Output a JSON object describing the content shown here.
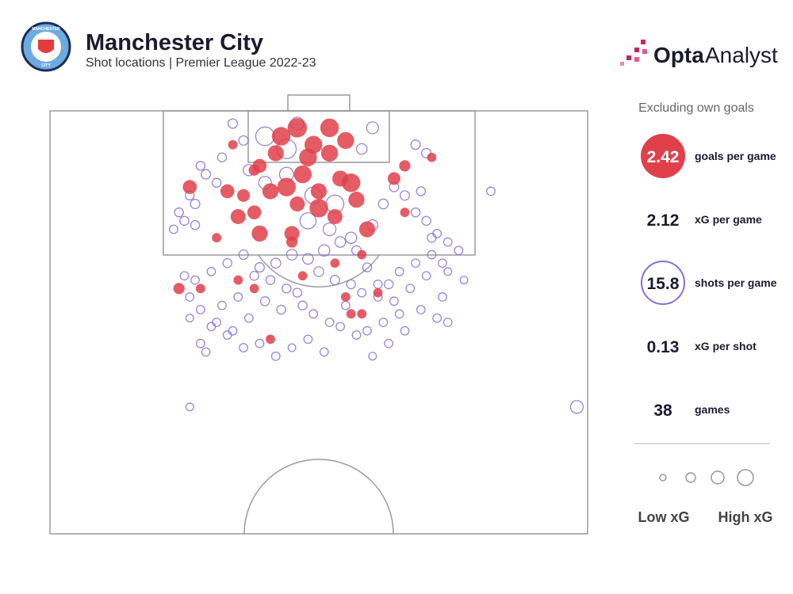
{
  "chart_data": {
    "type": "shotmap",
    "title": "Manchester City",
    "subtitle": "Shot locations | Premier League 2022-23",
    "crest_text": [
      "MANCHESTER",
      "CITY"
    ],
    "brand": [
      "Opta",
      "Analyst"
    ],
    "note": "Excluding own goals",
    "stats": [
      {
        "value": 2.42,
        "label": "goals per game"
      },
      {
        "value": 2.12,
        "label": "xG per game"
      },
      {
        "value": 15.8,
        "label": "shots per game"
      },
      {
        "value": 0.13,
        "label": "xG per shot"
      },
      {
        "value": 38,
        "label": "games"
      }
    ],
    "legend_labels": [
      "Low xG",
      "High xG"
    ],
    "xlim": [
      0,
      100
    ],
    "ylim": [
      0,
      100
    ],
    "goal_color": "#e0404a",
    "shot_color": "#8a6fd6",
    "shots": {
      "x": [
        34,
        46,
        36,
        60,
        58,
        68,
        70,
        32,
        28,
        29,
        31,
        26,
        27,
        25,
        24,
        23,
        37,
        40,
        44,
        48,
        52,
        56,
        60,
        62,
        64,
        66,
        68,
        70,
        72,
        74,
        76,
        73,
        71,
        69,
        65,
        63,
        61,
        59,
        57,
        54,
        51,
        48,
        45,
        42,
        39,
        36,
        33,
        30,
        27,
        25,
        26,
        28,
        31,
        34,
        37,
        40,
        43,
        46,
        49,
        52,
        55,
        58,
        61,
        64,
        67,
        70,
        73,
        74,
        72,
        69,
        66,
        63,
        60,
        57,
        54,
        51,
        48,
        45,
        42,
        39,
        36,
        33,
        30,
        28,
        26,
        29,
        32,
        35,
        38,
        41,
        44,
        47,
        50,
        53,
        56,
        59,
        62,
        65,
        68,
        71,
        74,
        77,
        53,
        49,
        44,
        40,
        27,
        82,
        98,
        26
      ],
      "y": [
        3,
        3,
        7,
        4,
        9,
        8,
        10,
        11,
        13,
        15,
        17,
        20,
        22,
        26,
        24,
        28,
        14,
        17,
        15,
        26,
        28,
        30,
        27,
        22,
        18,
        20,
        24,
        26,
        29,
        31,
        33,
        36,
        30,
        19,
        38,
        41,
        44,
        37,
        33,
        31,
        33,
        35,
        34,
        36,
        37,
        34,
        36,
        38,
        40,
        39,
        44,
        47,
        50,
        52,
        49,
        45,
        47,
        43,
        48,
        50,
        46,
        43,
        41,
        45,
        42,
        39,
        44,
        50,
        49,
        47,
        52,
        55,
        58,
        53,
        51,
        57,
        54,
        56,
        58,
        55,
        56,
        53,
        51,
        55,
        49,
        57,
        46,
        44,
        39,
        40,
        42,
        46,
        38,
        40,
        41,
        52,
        50,
        48,
        36,
        34,
        38,
        40,
        22,
        20,
        9,
        6,
        27,
        19,
        70,
        70
      ],
      "xg": [
        0.05,
        0.15,
        0.05,
        0.12,
        0.08,
        0.05,
        0.05,
        0.04,
        0.04,
        0.05,
        0.04,
        0.04,
        0.05,
        0.04,
        0.04,
        0.03,
        0.1,
        0.15,
        0.2,
        0.3,
        0.15,
        0.1,
        0.08,
        0.06,
        0.05,
        0.05,
        0.04,
        0.04,
        0.03,
        0.03,
        0.03,
        0.03,
        0.04,
        0.04,
        0.03,
        0.04,
        0.03,
        0.04,
        0.05,
        0.08,
        0.1,
        0.08,
        0.08,
        0.06,
        0.05,
        0.05,
        0.04,
        0.03,
        0.03,
        0.03,
        0.03,
        0.03,
        0.03,
        0.03,
        0.03,
        0.04,
        0.04,
        0.04,
        0.03,
        0.03,
        0.03,
        0.03,
        0.03,
        0.03,
        0.03,
        0.03,
        0.03,
        0.03,
        0.03,
        0.03,
        0.03,
        0.03,
        0.02,
        0.03,
        0.03,
        0.03,
        0.03,
        0.02,
        0.03,
        0.03,
        0.03,
        0.03,
        0.03,
        0.03,
        0.02,
        0.03,
        0.03,
        0.03,
        0.04,
        0.04,
        0.04,
        0.04,
        0.06,
        0.05,
        0.04,
        0.03,
        0.03,
        0.03,
        0.03,
        0.03,
        0.02,
        0.02,
        0.4,
        0.35,
        0.5,
        0.45,
        0.04,
        0.03,
        0.15,
        0.02
      ]
    },
    "goals": {
      "x": [
        46,
        43,
        49,
        52,
        55,
        42,
        48,
        52,
        39,
        47,
        54,
        44,
        50,
        56,
        41,
        46,
        50,
        57,
        35,
        38,
        39,
        45,
        53,
        59,
        33,
        26,
        36,
        64,
        66,
        71,
        31,
        45,
        58,
        53,
        47,
        35,
        28,
        24,
        38,
        61,
        55,
        56,
        58,
        41,
        66,
        34,
        38
      ],
      "y": [
        4,
        6,
        8,
        4,
        7,
        10,
        11,
        10,
        13,
        15,
        16,
        18,
        19,
        17,
        19,
        22,
        23,
        21,
        25,
        24,
        29,
        29,
        25,
        28,
        19,
        18,
        20,
        16,
        13,
        11,
        30,
        31,
        34,
        36,
        39,
        40,
        42,
        42,
        42,
        43,
        44,
        48,
        48,
        54,
        24,
        8,
        14
      ],
      "xg": [
        0.5,
        0.45,
        0.4,
        0.45,
        0.35,
        0.3,
        0.4,
        0.35,
        0.2,
        0.4,
        0.3,
        0.45,
        0.3,
        0.45,
        0.3,
        0.25,
        0.45,
        0.3,
        0.25,
        0.2,
        0.3,
        0.25,
        0.25,
        0.3,
        0.2,
        0.2,
        0.15,
        0.15,
        0.1,
        0.05,
        0.05,
        0.1,
        0.05,
        0.05,
        0.05,
        0.05,
        0.05,
        0.1,
        0.05,
        0.05,
        0.05,
        0.05,
        0.05,
        0.05,
        0.05,
        0.05,
        0.1
      ]
    }
  }
}
